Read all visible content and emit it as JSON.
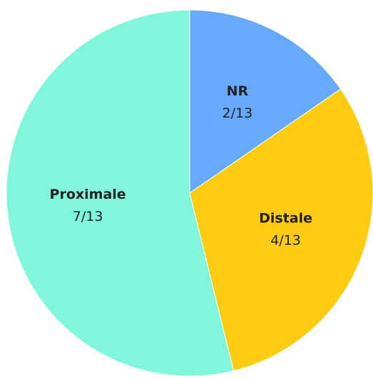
{
  "chart_data": {
    "type": "pie",
    "categories": [
      "NR",
      "Distale",
      "Proximale"
    ],
    "values": [
      2,
      4,
      7
    ],
    "value_labels": [
      "2/13",
      "4/13",
      "7/13"
    ],
    "colors": [
      "#66aaff",
      "#ffcc11",
      "#80f7da"
    ]
  }
}
